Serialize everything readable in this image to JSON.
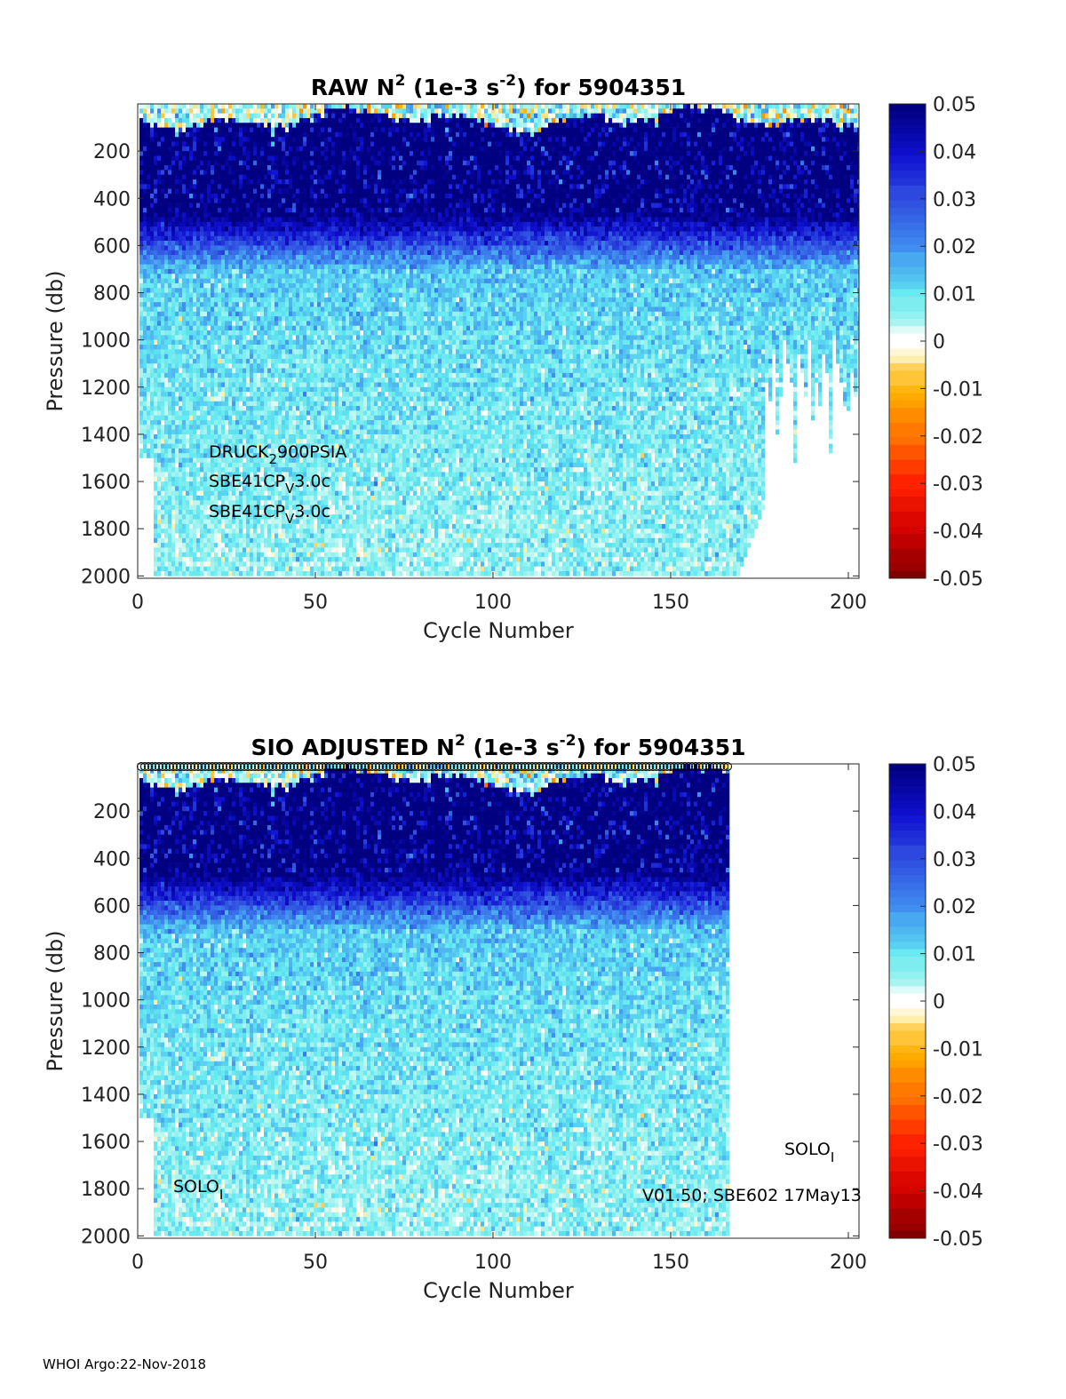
{
  "footer": "WHOI Argo:22-Nov-2018",
  "colors": {
    "neg_max": "#800000",
    "neg": "#ff2000",
    "orange": "#ff9000",
    "zero": "#ffffff",
    "cyan": "#60e8f0",
    "blue": "#3050e0",
    "pos_max": "#000080"
  },
  "chart_data": [
    {
      "type": "heatmap",
      "title_parts": [
        "RAW N",
        "2",
        " (1e-3 s",
        "-2",
        ") for 5904351"
      ],
      "xlabel": "Cycle Number",
      "ylabel": "Pressure (db)",
      "xlim": [
        0,
        203
      ],
      "ylim": [
        0,
        2010
      ],
      "y_reversed": true,
      "xticks": [
        "0",
        "50",
        "100",
        "150",
        "200"
      ],
      "yticks": [
        "200",
        "400",
        "600",
        "800",
        "1000",
        "1200",
        "1400",
        "1600",
        "1800",
        "2000"
      ],
      "colorbar": {
        "range": [
          -0.05,
          0.05
        ],
        "ticks": [
          "0.05",
          "0.04",
          "0.03",
          "0.02",
          "0.01",
          "0",
          "-0.01",
          "-0.02",
          "-0.03",
          "-0.04",
          "-0.05"
        ]
      },
      "cycles": [
        1,
        203
      ],
      "approx_mean_profile": {
        "pressure": [
          20,
          100,
          200,
          400,
          500,
          600,
          800,
          1000,
          1500,
          2000
        ],
        "value": [
          0.004,
          0.05,
          0.05,
          0.048,
          0.035,
          0.016,
          0.011,
          0.009,
          0.006,
          0.004
        ]
      },
      "missing_data": "cycles 1-4 end near 1500 db; cycles ~170-176 end 1750-1950 db; cycles ~177-203 end near 1000-1300 db",
      "annotations": [
        {
          "text": "DRUCK",
          "sub": "2",
          "after": "900PSIA"
        },
        {
          "text": "SBE41CP",
          "sub": "V",
          "after": "3.0c"
        },
        {
          "text": "SBE41CP",
          "sub": "V",
          "after": "3.0c"
        }
      ]
    },
    {
      "type": "heatmap",
      "title_parts": [
        "SIO  ADJUSTED N",
        "2",
        " (1e-3 s",
        "-2",
        ") for 5904351"
      ],
      "xlabel": "Cycle Number",
      "ylabel": "Pressure (db)",
      "xlim": [
        0,
        203
      ],
      "ylim": [
        0,
        2010
      ],
      "y_reversed": true,
      "xticks": [
        "0",
        "50",
        "100",
        "150",
        "200"
      ],
      "yticks": [
        "200",
        "400",
        "600",
        "800",
        "1000",
        "1200",
        "1400",
        "1600",
        "1800",
        "2000"
      ],
      "colorbar": {
        "range": [
          -0.05,
          0.05
        ],
        "ticks": [
          "0.05",
          "0.04",
          "0.03",
          "0.02",
          "0.01",
          "0",
          "-0.01",
          "-0.02",
          "-0.03",
          "-0.04",
          "-0.05"
        ]
      },
      "cycles": [
        1,
        166
      ],
      "approx_mean_profile": {
        "pressure": [
          20,
          100,
          200,
          400,
          500,
          600,
          800,
          1000,
          1500,
          2000
        ],
        "value": [
          0.004,
          0.05,
          0.05,
          0.048,
          0.035,
          0.016,
          0.011,
          0.009,
          0.006,
          0.004
        ]
      },
      "markers": "circle marker at surface for each cycle 1-166",
      "annotations": [
        {
          "text": "SOLO",
          "sub": "I",
          "after": ""
        },
        {
          "text": "V01.50; SBE602 17May13",
          "sub": "",
          "after": ""
        },
        {
          "text": "SOLO",
          "sub": "I",
          "after": ""
        }
      ]
    }
  ]
}
